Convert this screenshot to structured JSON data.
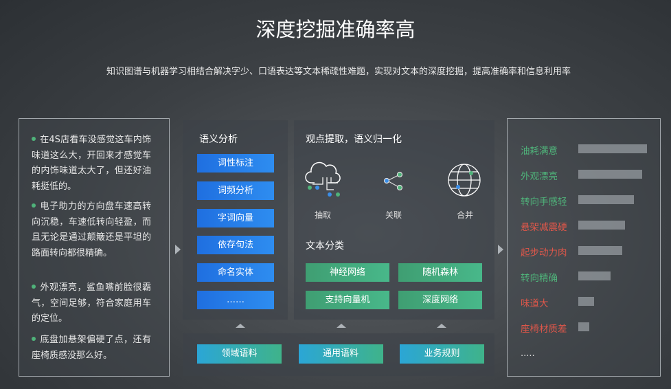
{
  "title": "深度挖掘准确率高",
  "subtitle": "知识图谱与机器学习相结合解决字少、口语表达等文本稀疏性难题，实现对文本的深度挖掘，提高准确率和信息利用率",
  "reviews": [
    "在4S店看车没感觉这车内饰味道这么大，开回来才感觉车的内饰味道太大了，但还好油耗挺低的。",
    "电子助力的方向盘车速高转向沉稳，车速低转向轻盈，而且无论是通过颠簸还是平坦的路面转向都很精确。",
    "外观漂亮，鲨鱼嘴前脸很霸气，空间足够，符合家庭用车的定位。",
    "底盘加悬架偏硬了点，还有座椅质感没那么好。"
  ],
  "semantic_analysis": {
    "title": "语义分析",
    "items": [
      "词性标注",
      "词频分析",
      "字词向量",
      "依存句法",
      "命名实体",
      "……"
    ]
  },
  "opinion_extraction": {
    "title": "观点提取，语义归一化",
    "steps": [
      "抽取",
      "关联",
      "合并"
    ]
  },
  "text_classification": {
    "title": "文本分类",
    "items": [
      "神经网络",
      "随机森林",
      "支持向量机",
      "深度网络"
    ]
  },
  "resources": [
    "领域语料",
    "通用语料",
    "业务规则"
  ],
  "aspects": {
    "items": [
      {
        "label": "油耗满意",
        "color": "#4fb37a",
        "value": 100
      },
      {
        "label": "外观漂亮",
        "color": "#4fb37a",
        "value": 93
      },
      {
        "label": "转向手感轻",
        "color": "#4fb37a",
        "value": 81
      },
      {
        "label": "悬架减震硬",
        "color": "#e0574a",
        "value": 68
      },
      {
        "label": "起步动力肉",
        "color": "#e0574a",
        "value": 64
      },
      {
        "label": "转向精确",
        "color": "#4fb37a",
        "value": 47
      },
      {
        "label": "味道大",
        "color": "#e0574a",
        "value": 23
      },
      {
        "label": "座椅材质差",
        "color": "#e0574a",
        "value": 16
      }
    ],
    "more": "....."
  }
}
